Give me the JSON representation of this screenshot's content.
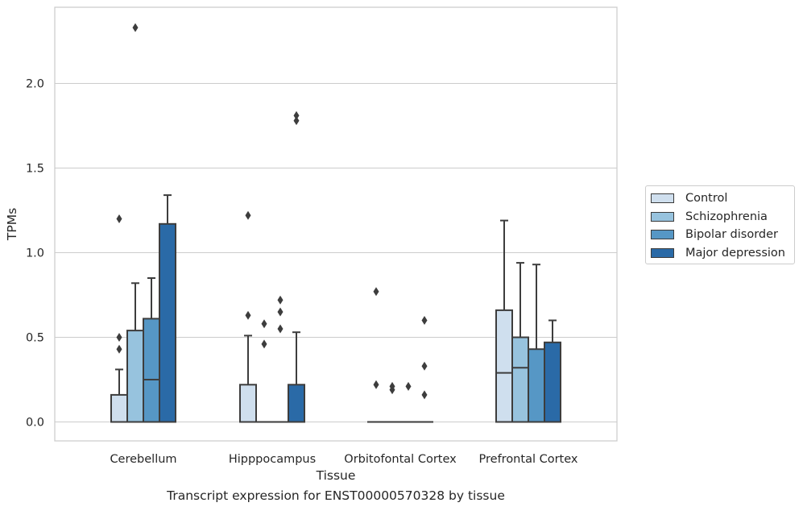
{
  "chart_data": {
    "type": "box",
    "caption": "Transcript expression for ENST00000570328 by tissue",
    "xlabel": "Tissue",
    "ylabel": "TPMs",
    "ylim": [
      -0.11,
      2.45
    ],
    "yticks": [
      0.0,
      0.5,
      1.0,
      1.5,
      2.0
    ],
    "ytick_labels": [
      "0.0",
      "0.5",
      "1.0",
      "1.5",
      "2.0"
    ],
    "grid": "horizontal",
    "legend_position": "right",
    "categories": [
      "Cerebellum",
      "Hipppocampus",
      "Orbitofontal Cortex",
      "Prefrontal Cortex"
    ],
    "series": [
      {
        "name": "Control",
        "color": "#cfdfee",
        "boxes": [
          {
            "q1": 0.0,
            "median": 0.0,
            "q3": 0.16,
            "whisker_low": 0.0,
            "whisker_high": 0.31,
            "outliers": [
              0.43,
              0.5,
              1.2
            ]
          },
          {
            "q1": 0.0,
            "median": 0.0,
            "q3": 0.22,
            "whisker_low": 0.0,
            "whisker_high": 0.51,
            "outliers": [
              0.63,
              1.22
            ]
          },
          {
            "q1": 0.0,
            "median": 0.0,
            "q3": 0.0,
            "whisker_low": 0.0,
            "whisker_high": 0.0,
            "outliers": [
              0.22,
              0.77
            ]
          },
          {
            "q1": 0.0,
            "median": 0.29,
            "q3": 0.66,
            "whisker_low": 0.0,
            "whisker_high": 1.19,
            "outliers": []
          }
        ]
      },
      {
        "name": "Schizophrenia",
        "color": "#97c3de",
        "boxes": [
          {
            "q1": 0.0,
            "median": 0.0,
            "q3": 0.54,
            "whisker_low": 0.0,
            "whisker_high": 0.82,
            "outliers": [
              2.33
            ]
          },
          {
            "q1": 0.0,
            "median": 0.0,
            "q3": 0.0,
            "whisker_low": 0.0,
            "whisker_high": 0.0,
            "outliers": [
              0.46,
              0.58
            ]
          },
          {
            "q1": 0.0,
            "median": 0.0,
            "q3": 0.0,
            "whisker_low": 0.0,
            "whisker_high": 0.0,
            "outliers": [
              0.19,
              0.21
            ]
          },
          {
            "q1": 0.0,
            "median": 0.32,
            "q3": 0.5,
            "whisker_low": 0.0,
            "whisker_high": 0.94,
            "outliers": []
          }
        ]
      },
      {
        "name": "Bipolar disorder",
        "color": "#5697c5",
        "boxes": [
          {
            "q1": 0.0,
            "median": 0.25,
            "q3": 0.61,
            "whisker_low": 0.0,
            "whisker_high": 0.85,
            "outliers": []
          },
          {
            "q1": 0.0,
            "median": 0.0,
            "q3": 0.0,
            "whisker_low": 0.0,
            "whisker_high": 0.0,
            "outliers": [
              0.55,
              0.65,
              0.72
            ]
          },
          {
            "q1": 0.0,
            "median": 0.0,
            "q3": 0.0,
            "whisker_low": 0.0,
            "whisker_high": 0.0,
            "outliers": [
              0.21
            ]
          },
          {
            "q1": 0.0,
            "median": 0.0,
            "q3": 0.43,
            "whisker_low": 0.0,
            "whisker_high": 0.93,
            "outliers": []
          }
        ]
      },
      {
        "name": "Major depression",
        "color": "#2a6aa7",
        "boxes": [
          {
            "q1": 0.0,
            "median": 0.0,
            "q3": 1.17,
            "whisker_low": 0.0,
            "whisker_high": 1.34,
            "outliers": []
          },
          {
            "q1": 0.0,
            "median": 0.0,
            "q3": 0.22,
            "whisker_low": 0.0,
            "whisker_high": 0.53,
            "outliers": [
              1.78,
              1.81
            ]
          },
          {
            "q1": 0.0,
            "median": 0.0,
            "q3": 0.0,
            "whisker_low": 0.0,
            "whisker_high": 0.0,
            "outliers": [
              0.16,
              0.33,
              0.6
            ]
          },
          {
            "q1": 0.0,
            "median": 0.0,
            "q3": 0.47,
            "whisker_low": 0.0,
            "whisker_high": 0.6,
            "outliers": []
          }
        ]
      }
    ]
  }
}
